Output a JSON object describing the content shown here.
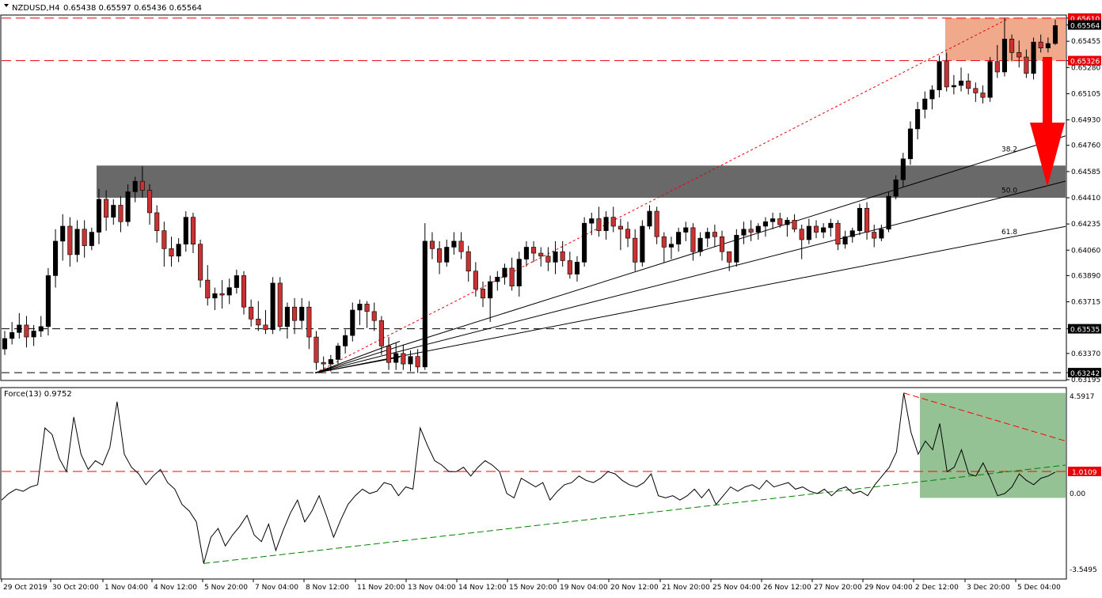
{
  "header": {
    "symbol_label": "NZDUSD,H4",
    "ohlc_label": "0.65438 0.65597 0.65436 0.65564"
  },
  "indicator": {
    "label": "Force(13) 0.9752",
    "axis_labels": [
      "4.5917",
      "1.0109",
      "0.00",
      "-3.5495"
    ],
    "range": [
      -3.5495,
      4.5917
    ],
    "reference_level": 1.0109,
    "colors": {
      "line": "#000000",
      "trend_up": "#008000",
      "trend_down": "#ff0000",
      "zone": "#8fbf8f"
    }
  },
  "chart_data": {
    "type": "candlestick",
    "instrument": "NZDUSD",
    "timeframe": "H4",
    "ylim": [
      0.63195,
      0.65625
    ],
    "price_axis_labels": [
      "0.65610",
      "0.65564",
      "0.65455",
      "0.65326",
      "0.65280",
      "0.65105",
      "0.64930",
      "0.64760",
      "0.64585",
      "0.64410",
      "0.64235",
      "0.64060",
      "0.63890",
      "0.63715",
      "0.63535",
      "0.63370",
      "0.63242",
      "0.63195"
    ],
    "highlighted_price_labels": [
      {
        "value": "0.65610",
        "color": "#e8000a"
      },
      {
        "value": "0.65564",
        "color": "#000000"
      },
      {
        "value": "0.65326",
        "color": "#e8000a"
      },
      {
        "value": "0.63535",
        "color": "#000000"
      },
      {
        "value": "0.63242",
        "color": "#000000"
      }
    ],
    "x_tick_labels": [
      "29 Oct 2019",
      "30 Oct 20:00",
      "1 Nov 04:00",
      "4 Nov 12:00",
      "5 Nov 20:00",
      "7 Nov 04:00",
      "8 Nov 12:00",
      "11 Nov 20:00",
      "13 Nov 04:00",
      "14 Nov 12:00",
      "15 Nov 20:00",
      "19 Nov 04:00",
      "20 Nov 12:00",
      "21 Nov 20:00",
      "25 Nov 04:00",
      "26 Nov 12:00",
      "27 Nov 20:00",
      "29 Nov 04:00",
      "2 Dec 12:00",
      "3 Dec 20:00",
      "5 Dec 04:00"
    ],
    "horizontal_levels": [
      {
        "value": 0.6561,
        "color": "#e8000a",
        "style": "dashed"
      },
      {
        "value": 0.65326,
        "color": "#e8000a",
        "style": "dashed"
      },
      {
        "value": 0.63535,
        "color": "#000000",
        "style": "dashed"
      },
      {
        "value": 0.63242,
        "color": "#000000",
        "style": "dashed"
      }
    ],
    "zones": [
      {
        "kind": "resistance",
        "top": 0.6561,
        "bottom": 0.65326,
        "color": "#f0a080"
      },
      {
        "kind": "support",
        "top": 0.64625,
        "bottom": 0.6441,
        "color": "#696969"
      }
    ],
    "fan_labels": [
      "38.2",
      "50.0",
      "61.8"
    ],
    "arrow": {
      "direction": "down",
      "color": "#ff0000"
    },
    "colors": {
      "bull": "#000000",
      "bear": "#c83232",
      "grid": "#e0e0e0"
    },
    "candles_ohlc": [
      [
        0.634,
        0.6352,
        0.6336,
        0.6347
      ],
      [
        0.6347,
        0.6358,
        0.6343,
        0.6351
      ],
      [
        0.6351,
        0.6364,
        0.6347,
        0.6356
      ],
      [
        0.6356,
        0.6362,
        0.6341,
        0.6348
      ],
      [
        0.6348,
        0.6356,
        0.6342,
        0.6352
      ],
      [
        0.6352,
        0.6362,
        0.6348,
        0.6355
      ],
      [
        0.6355,
        0.6394,
        0.6349,
        0.6389
      ],
      [
        0.6389,
        0.642,
        0.6381,
        0.6412
      ],
      [
        0.6412,
        0.643,
        0.6399,
        0.6422
      ],
      [
        0.6422,
        0.6428,
        0.6395,
        0.6403
      ],
      [
        0.6403,
        0.6426,
        0.6398,
        0.642
      ],
      [
        0.642,
        0.6426,
        0.6401,
        0.6409
      ],
      [
        0.6409,
        0.6421,
        0.6406,
        0.6418
      ],
      [
        0.6418,
        0.6447,
        0.641,
        0.644
      ],
      [
        0.644,
        0.6446,
        0.6419,
        0.6428
      ],
      [
        0.6428,
        0.644,
        0.6423,
        0.6436
      ],
      [
        0.6436,
        0.6442,
        0.6418,
        0.6425
      ],
      [
        0.6425,
        0.645,
        0.6422,
        0.6445
      ],
      [
        0.6445,
        0.6455,
        0.6438,
        0.6452
      ],
      [
        0.6452,
        0.6462,
        0.6441,
        0.6446
      ],
      [
        0.6446,
        0.645,
        0.6423,
        0.6431
      ],
      [
        0.6431,
        0.6436,
        0.6411,
        0.6419
      ],
      [
        0.6419,
        0.6425,
        0.6395,
        0.6407
      ],
      [
        0.6407,
        0.6415,
        0.6395,
        0.6402
      ],
      [
        0.6402,
        0.6414,
        0.6398,
        0.641
      ],
      [
        0.641,
        0.6432,
        0.6405,
        0.6428
      ],
      [
        0.6428,
        0.6431,
        0.6404,
        0.641
      ],
      [
        0.641,
        0.6413,
        0.6381,
        0.6386
      ],
      [
        0.6386,
        0.6396,
        0.6369,
        0.6374
      ],
      [
        0.6374,
        0.6381,
        0.6366,
        0.6377
      ],
      [
        0.6377,
        0.6386,
        0.6367,
        0.6376
      ],
      [
        0.6376,
        0.6387,
        0.637,
        0.6381
      ],
      [
        0.6381,
        0.6393,
        0.6377,
        0.6389
      ],
      [
        0.6389,
        0.6392,
        0.6363,
        0.6368
      ],
      [
        0.6368,
        0.6373,
        0.6355,
        0.636
      ],
      [
        0.636,
        0.6372,
        0.6352,
        0.6356
      ],
      [
        0.6356,
        0.6366,
        0.635,
        0.6353
      ],
      [
        0.6353,
        0.6388,
        0.635,
        0.6384
      ],
      [
        0.6384,
        0.6388,
        0.6352,
        0.6355
      ],
      [
        0.6355,
        0.6371,
        0.6347,
        0.6368
      ],
      [
        0.6368,
        0.6374,
        0.635,
        0.6359
      ],
      [
        0.6359,
        0.6374,
        0.6353,
        0.6368
      ],
      [
        0.6368,
        0.6372,
        0.634,
        0.6348
      ],
      [
        0.6348,
        0.6352,
        0.6326,
        0.6331
      ],
      [
        0.6331,
        0.6335,
        0.6325,
        0.633
      ],
      [
        0.633,
        0.6336,
        0.6325,
        0.6333
      ],
      [
        0.6333,
        0.6344,
        0.633,
        0.6342
      ],
      [
        0.6342,
        0.6353,
        0.6337,
        0.6349
      ],
      [
        0.6349,
        0.6371,
        0.6345,
        0.6366
      ],
      [
        0.6366,
        0.6373,
        0.6356,
        0.637
      ],
      [
        0.637,
        0.6372,
        0.6354,
        0.6365
      ],
      [
        0.6365,
        0.6371,
        0.6352,
        0.6359
      ],
      [
        0.6359,
        0.6362,
        0.6336,
        0.6342
      ],
      [
        0.6342,
        0.6348,
        0.6326,
        0.6331
      ],
      [
        0.6331,
        0.6344,
        0.6326,
        0.6337
      ],
      [
        0.6337,
        0.6343,
        0.6326,
        0.633
      ],
      [
        0.633,
        0.6339,
        0.6325,
        0.6335
      ],
      [
        0.6335,
        0.634,
        0.6324,
        0.6328
      ],
      [
        0.6328,
        0.6424,
        0.6326,
        0.6412
      ],
      [
        0.6412,
        0.6418,
        0.64,
        0.6407
      ],
      [
        0.6407,
        0.6412,
        0.639,
        0.6398
      ],
      [
        0.6398,
        0.6413,
        0.6395,
        0.6408
      ],
      [
        0.6408,
        0.6418,
        0.6403,
        0.6412
      ],
      [
        0.6412,
        0.6418,
        0.64,
        0.6405
      ],
      [
        0.6405,
        0.6409,
        0.6385,
        0.6392
      ],
      [
        0.6392,
        0.6398,
        0.6375,
        0.638
      ],
      [
        0.638,
        0.6385,
        0.6368,
        0.6374
      ],
      [
        0.6374,
        0.6389,
        0.6358,
        0.6385
      ],
      [
        0.6385,
        0.6392,
        0.6379,
        0.6388
      ],
      [
        0.6388,
        0.6397,
        0.6383,
        0.6394
      ],
      [
        0.6394,
        0.6401,
        0.6379,
        0.6382
      ],
      [
        0.6382,
        0.6405,
        0.6375,
        0.64
      ],
      [
        0.64,
        0.6412,
        0.6395,
        0.6408
      ],
      [
        0.6408,
        0.6412,
        0.6398,
        0.6404
      ],
      [
        0.6404,
        0.6408,
        0.6395,
        0.6402
      ],
      [
        0.6402,
        0.6408,
        0.6392,
        0.6398
      ],
      [
        0.6398,
        0.6412,
        0.639,
        0.6405
      ],
      [
        0.6405,
        0.6412,
        0.6395,
        0.6399
      ],
      [
        0.6399,
        0.6405,
        0.6387,
        0.639
      ],
      [
        0.639,
        0.6402,
        0.6385,
        0.6398
      ],
      [
        0.6398,
        0.6428,
        0.6395,
        0.6424
      ],
      [
        0.6424,
        0.6431,
        0.6416,
        0.6427
      ],
      [
        0.6427,
        0.6435,
        0.6415,
        0.6419
      ],
      [
        0.6419,
        0.6432,
        0.6413,
        0.6428
      ],
      [
        0.6428,
        0.6435,
        0.6418,
        0.6422
      ],
      [
        0.6422,
        0.6427,
        0.6406,
        0.642
      ],
      [
        0.642,
        0.6425,
        0.6408,
        0.6414
      ],
      [
        0.6414,
        0.642,
        0.6392,
        0.6398
      ],
      [
        0.6398,
        0.6426,
        0.6395,
        0.6422
      ],
      [
        0.6422,
        0.6436,
        0.642,
        0.6432
      ],
      [
        0.6432,
        0.6435,
        0.641,
        0.6415
      ],
      [
        0.6415,
        0.6418,
        0.6398,
        0.6408
      ],
      [
        0.6408,
        0.6415,
        0.64,
        0.641
      ],
      [
        0.641,
        0.6421,
        0.6405,
        0.6418
      ],
      [
        0.6418,
        0.6425,
        0.6412,
        0.6421
      ],
      [
        0.6421,
        0.6424,
        0.6399,
        0.6405
      ],
      [
        0.6405,
        0.6418,
        0.6402,
        0.6414
      ],
      [
        0.6414,
        0.6421,
        0.6408,
        0.6418
      ],
      [
        0.6418,
        0.6423,
        0.6408,
        0.6415
      ],
      [
        0.6415,
        0.6419,
        0.6399,
        0.6405
      ],
      [
        0.6405,
        0.6399,
        0.6392,
        0.6398
      ],
      [
        0.6398,
        0.642,
        0.6395,
        0.6416
      ],
      [
        0.6416,
        0.6425,
        0.641,
        0.642
      ],
      [
        0.642,
        0.6426,
        0.6412,
        0.6418
      ],
      [
        0.6418,
        0.6424,
        0.6413,
        0.6422
      ],
      [
        0.6422,
        0.6428,
        0.6415,
        0.6425
      ],
      [
        0.6425,
        0.6431,
        0.642,
        0.6427
      ],
      [
        0.6427,
        0.6431,
        0.6421,
        0.6423
      ],
      [
        0.6423,
        0.6428,
        0.6415,
        0.6426
      ],
      [
        0.6426,
        0.643,
        0.6418,
        0.642
      ],
      [
        0.642,
        0.6423,
        0.64,
        0.6413
      ],
      [
        0.6413,
        0.6427,
        0.641,
        0.6422
      ],
      [
        0.6422,
        0.6426,
        0.6414,
        0.6418
      ],
      [
        0.6418,
        0.6424,
        0.6414,
        0.6421
      ],
      [
        0.6421,
        0.6427,
        0.6415,
        0.6424
      ],
      [
        0.6424,
        0.6426,
        0.6406,
        0.641
      ],
      [
        0.641,
        0.6419,
        0.6407,
        0.6415
      ],
      [
        0.6415,
        0.6421,
        0.6411,
        0.6419
      ],
      [
        0.6419,
        0.6437,
        0.6416,
        0.6434
      ],
      [
        0.6434,
        0.6438,
        0.6413,
        0.6418
      ],
      [
        0.6418,
        0.6423,
        0.6408,
        0.6414
      ],
      [
        0.6414,
        0.6423,
        0.6412,
        0.642
      ],
      [
        0.642,
        0.6445,
        0.6418,
        0.6442
      ],
      [
        0.6442,
        0.6456,
        0.644,
        0.6453
      ],
      [
        0.6453,
        0.6471,
        0.6448,
        0.6467
      ],
      [
        0.6467,
        0.6492,
        0.6463,
        0.6487
      ],
      [
        0.6487,
        0.6505,
        0.648,
        0.65
      ],
      [
        0.65,
        0.6512,
        0.6494,
        0.6507
      ],
      [
        0.6507,
        0.6516,
        0.65,
        0.6513
      ],
      [
        0.6513,
        0.6536,
        0.6508,
        0.6532
      ],
      [
        0.6532,
        0.6538,
        0.6512,
        0.6515
      ],
      [
        0.6515,
        0.6523,
        0.651,
        0.6516
      ],
      [
        0.6516,
        0.6528,
        0.6512,
        0.6519
      ],
      [
        0.6519,
        0.6524,
        0.651,
        0.6514
      ],
      [
        0.6514,
        0.6518,
        0.6505,
        0.6511
      ],
      [
        0.6511,
        0.6516,
        0.6504,
        0.6508
      ],
      [
        0.6508,
        0.6535,
        0.6505,
        0.6532
      ],
      [
        0.6532,
        0.6543,
        0.6521,
        0.6525
      ],
      [
        0.6525,
        0.6561,
        0.6522,
        0.6547
      ],
      [
        0.6547,
        0.655,
        0.6532,
        0.6538
      ],
      [
        0.6538,
        0.6546,
        0.6528,
        0.6535
      ],
      [
        0.6535,
        0.654,
        0.6521,
        0.6524
      ],
      [
        0.6524,
        0.6548,
        0.652,
        0.6545
      ],
      [
        0.6545,
        0.655,
        0.6538,
        0.6541
      ],
      [
        0.6541,
        0.6548,
        0.6538,
        0.6544
      ],
      [
        0.6544,
        0.656,
        0.6543,
        0.6556
      ]
    ],
    "force_index": [
      -0.3,
      0.0,
      0.2,
      0.1,
      0.3,
      0.4,
      3.0,
      2.7,
      1.6,
      1.0,
      3.5,
      1.8,
      1.1,
      1.5,
      1.3,
      2.1,
      4.2,
      1.8,
      1.2,
      0.9,
      0.4,
      0.8,
      1.1,
      0.5,
      0.2,
      -0.5,
      -0.8,
      -1.3,
      -3.2,
      -2.0,
      -1.6,
      -2.4,
      -1.9,
      -1.5,
      -1.0,
      -1.9,
      -2.2,
      -1.4,
      -2.6,
      -1.7,
      -0.9,
      -0.3,
      -1.3,
      -0.8,
      -0.1,
      -1.0,
      -2.0,
      -1.2,
      -0.5,
      -0.1,
      0.2,
      0.0,
      0.1,
      0.5,
      0.4,
      -0.1,
      0.3,
      0.2,
      3.0,
      2.2,
      1.5,
      1.3,
      1.0,
      1.0,
      1.2,
      0.8,
      1.2,
      1.5,
      1.3,
      1.0,
      0.0,
      -0.2,
      0.7,
      0.5,
      0.3,
      0.5,
      -0.3,
      0.1,
      0.4,
      0.5,
      0.8,
      0.6,
      0.5,
      0.7,
      1.0,
      0.9,
      0.6,
      0.4,
      0.3,
      0.5,
      0.9,
      -0.1,
      -0.2,
      -0.1,
      -0.3,
      -0.1,
      0.2,
      -0.2,
      0.2,
      -0.5,
      -0.1,
      0.3,
      0.1,
      0.3,
      0.4,
      0.2,
      0.6,
      0.3,
      0.4,
      0.5,
      0.2,
      0.3,
      0.1,
      0.0,
      0.2,
      -0.1,
      0.2,
      0.3,
      0.0,
      0.1,
      -0.1,
      0.4,
      0.8,
      1.2,
      1.9,
      4.6,
      2.8,
      1.8,
      2.4,
      2.0,
      3.2,
      1.0,
      1.2,
      2.0,
      0.9,
      0.8,
      1.4,
      0.7,
      -0.1,
      0.0,
      0.3,
      0.9,
      0.6,
      0.4,
      0.7,
      0.8,
      0.98
    ]
  }
}
